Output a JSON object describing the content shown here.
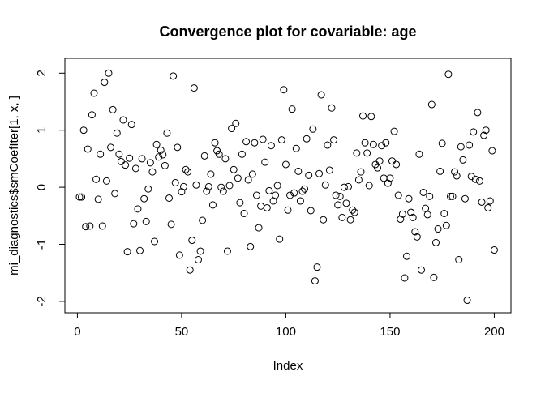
{
  "chart_data": {
    "type": "scatter",
    "title": "Convergence plot for covariable:   age",
    "x_label": "Index",
    "y_label": "mi_diagnostics$smCoefIter[1, x, ]",
    "x": [
      1,
      2,
      3,
      4,
      5,
      6,
      7,
      8,
      9,
      10,
      11,
      12,
      13,
      14,
      15,
      16,
      17,
      18,
      19,
      20,
      21,
      22,
      23,
      24,
      25,
      26,
      27,
      28,
      29,
      30,
      31,
      32,
      33,
      34,
      35,
      36,
      37,
      38,
      39,
      40,
      41,
      42,
      43,
      44,
      45,
      46,
      47,
      48,
      49,
      50,
      51,
      52,
      53,
      54,
      55,
      56,
      57,
      58,
      59,
      60,
      61,
      62,
      63,
      64,
      65,
      66,
      67,
      68,
      69,
      70,
      71,
      72,
      73,
      74,
      75,
      76,
      77,
      78,
      79,
      80,
      81,
      82,
      83,
      84,
      85,
      86,
      87,
      88,
      89,
      90,
      91,
      92,
      93,
      94,
      95,
      96,
      97,
      98,
      99,
      100,
      101,
      102,
      103,
      104,
      105,
      106,
      107,
      108,
      109,
      110,
      111,
      112,
      113,
      114,
      115,
      116,
      117,
      118,
      119,
      120,
      121,
      122,
      123,
      124,
      125,
      126,
      127,
      128,
      129,
      130,
      131,
      132,
      133,
      134,
      135,
      136,
      137,
      138,
      139,
      140,
      141,
      142,
      143,
      144,
      145,
      146,
      147,
      148,
      149,
      150,
      151,
      152,
      153,
      154,
      155,
      156,
      157,
      158,
      159,
      160,
      161,
      162,
      163,
      164,
      165,
      166,
      167,
      168,
      169,
      170,
      171,
      172,
      173,
      174,
      175,
      176,
      177,
      178,
      179,
      180,
      181,
      182,
      183,
      184,
      185,
      186,
      187,
      188,
      189,
      190,
      191,
      192,
      193,
      194,
      195,
      196,
      197,
      198,
      199,
      200
    ],
    "values": [
      -0.17,
      -0.17,
      1.0,
      -0.69,
      0.67,
      -0.68,
      1.27,
      1.65,
      0.14,
      -0.21,
      0.58,
      -0.68,
      1.84,
      0.11,
      2.0,
      0.7,
      1.36,
      -0.11,
      0.95,
      0.58,
      0.45,
      1.18,
      0.39,
      -1.13,
      0.51,
      1.1,
      -0.64,
      0.33,
      -0.38,
      -1.11,
      0.5,
      -0.2,
      -0.6,
      -0.03,
      0.43,
      0.27,
      -0.95,
      0.75,
      0.53,
      0.65,
      0.57,
      0.38,
      0.95,
      -0.19,
      -0.65,
      1.95,
      0.08,
      0.7,
      -1.19,
      -0.08,
      0.01,
      0.31,
      0.27,
      -1.45,
      -0.93,
      1.74,
      0.04,
      -1.27,
      -1.12,
      -0.58,
      0.55,
      -0.07,
      0.01,
      0.23,
      -0.31,
      0.78,
      0.64,
      0.58,
      0.0,
      -0.07,
      0.5,
      -1.12,
      0.03,
      1.03,
      0.31,
      1.12,
      0.16,
      -0.27,
      0.58,
      -0.46,
      0.8,
      0.13,
      -1.04,
      0.23,
      0.78,
      -0.14,
      -0.71,
      -0.33,
      0.84,
      0.44,
      -0.36,
      -0.06,
      0.73,
      -0.24,
      -0.14,
      0.03,
      -0.91,
      0.83,
      1.71,
      0.4,
      -0.4,
      -0.14,
      1.37,
      -0.1,
      0.68,
      0.28,
      -0.24,
      -0.07,
      -0.03,
      0.85,
      0.21,
      -0.41,
      1.02,
      -1.64,
      -1.4,
      0.24,
      1.62,
      -0.57,
      0.04,
      0.74,
      0.3,
      1.39,
      0.83,
      -0.14,
      -0.31,
      -0.16,
      -0.53,
      0.0,
      -0.28,
      0.01,
      -0.57,
      -0.4,
      -0.44,
      0.6,
      0.13,
      0.27,
      1.25,
      0.78,
      0.6,
      0.03,
      1.24,
      0.75,
      0.4,
      0.34,
      0.46,
      0.73,
      0.16,
      0.78,
      0.07,
      0.16,
      0.46,
      0.98,
      0.4,
      -0.14,
      -0.56,
      -0.47,
      -1.59,
      -1.21,
      -0.2,
      -0.44,
      -0.53,
      -0.78,
      -0.87,
      0.58,
      -1.45,
      -0.09,
      -0.37,
      -0.48,
      -0.16,
      1.45,
      -1.58,
      -0.97,
      -0.73,
      0.28,
      0.77,
      -0.46,
      -0.67,
      1.98,
      -0.16,
      -0.16,
      0.27,
      0.2,
      -1.27,
      0.71,
      0.48,
      -0.2,
      -1.98,
      0.74,
      0.19,
      0.97,
      0.14,
      1.31,
      0.11,
      -0.26,
      0.91,
      1.0,
      -0.36,
      -0.24,
      0.64,
      -1.1
    ],
    "color": "#000000",
    "xlim": [
      -6,
      208
    ],
    "ylim": [
      -2.2,
      2.26
    ],
    "xticks": [
      0,
      50,
      100,
      150,
      200
    ],
    "yticks": [
      -2,
      -1,
      0,
      1,
      2
    ]
  }
}
